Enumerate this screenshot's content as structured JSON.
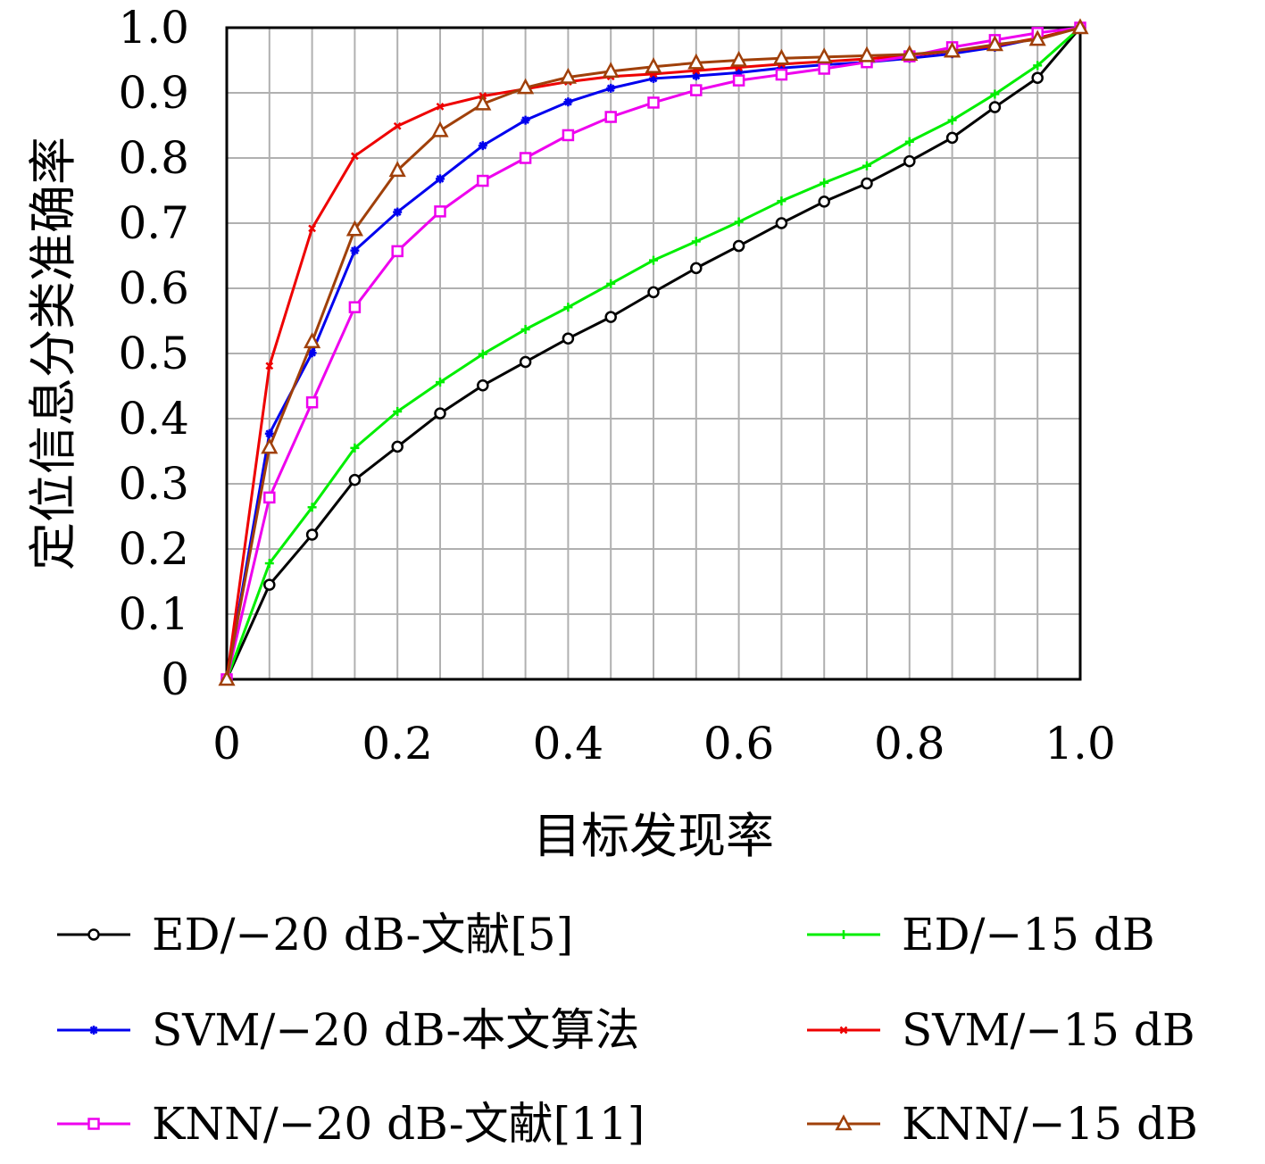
{
  "chart_data": {
    "type": "line",
    "title": "",
    "xlabel": "目标发现率",
    "ylabel": "定位信息分类准确率",
    "xlim": [
      0,
      1.0
    ],
    "ylim": [
      0,
      1.0
    ],
    "grid": true,
    "legend_position": "bottom",
    "x_ticks": [
      "0",
      "0.2",
      "0.4",
      "0.6",
      "0.8",
      "1.0"
    ],
    "y_ticks": [
      "0",
      "0.1",
      "0.2",
      "0.3",
      "0.4",
      "0.5",
      "0.6",
      "0.7",
      "0.8",
      "0.9",
      "1.0"
    ],
    "x": [
      0,
      0.05,
      0.1,
      0.15,
      0.2,
      0.25,
      0.3,
      0.35,
      0.4,
      0.45,
      0.5,
      0.55,
      0.6,
      0.65,
      0.7,
      0.75,
      0.8,
      0.85,
      0.9,
      0.95,
      1.0
    ],
    "series": [
      {
        "name": "ED/−20 dB-文献[5]",
        "color": "#000000",
        "marker": "circle",
        "values": [
          0,
          0.145,
          0.222,
          0.306,
          0.357,
          0.408,
          0.451,
          0.487,
          0.523,
          0.556,
          0.594,
          0.631,
          0.665,
          0.7,
          0.733,
          0.761,
          0.795,
          0.831,
          0.878,
          0.923,
          1.0
        ]
      },
      {
        "name": "ED/−15 dB",
        "color": "#00ee00",
        "marker": "plus",
        "values": [
          0,
          0.178,
          0.264,
          0.355,
          0.411,
          0.456,
          0.499,
          0.537,
          0.571,
          0.607,
          0.643,
          0.672,
          0.702,
          0.734,
          0.762,
          0.788,
          0.825,
          0.858,
          0.898,
          0.942,
          1.0
        ]
      },
      {
        "name": "SVM/−20 dB-本文算法",
        "color": "#0000ee",
        "marker": "star",
        "values": [
          0,
          0.377,
          0.501,
          0.658,
          0.717,
          0.768,
          0.819,
          0.858,
          0.886,
          0.907,
          0.922,
          0.926,
          0.931,
          0.938,
          0.943,
          0.947,
          0.953,
          0.96,
          0.97,
          0.984,
          1.0
        ]
      },
      {
        "name": "SVM/−15 dB",
        "color": "#ee0000",
        "marker": "x",
        "values": [
          0,
          0.481,
          0.692,
          0.803,
          0.849,
          0.879,
          0.895,
          0.906,
          0.917,
          0.925,
          0.929,
          0.934,
          0.939,
          0.944,
          0.948,
          0.952,
          0.957,
          0.964,
          0.972,
          0.984,
          1.0
        ]
      },
      {
        "name": "KNN/−20 dB-文献[11]",
        "color": "#ee00ee",
        "marker": "square",
        "values": [
          0,
          0.279,
          0.425,
          0.571,
          0.657,
          0.718,
          0.765,
          0.8,
          0.835,
          0.863,
          0.885,
          0.904,
          0.919,
          0.928,
          0.937,
          0.947,
          0.956,
          0.97,
          0.981,
          0.992,
          1.0
        ]
      },
      {
        "name": "KNN/−15 dB",
        "color": "#a0400a",
        "marker": "triangle",
        "values": [
          0,
          0.356,
          0.518,
          0.69,
          0.781,
          0.842,
          0.883,
          0.908,
          0.924,
          0.933,
          0.94,
          0.946,
          0.95,
          0.953,
          0.955,
          0.957,
          0.959,
          0.964,
          0.974,
          0.982,
          1.0
        ]
      }
    ]
  }
}
